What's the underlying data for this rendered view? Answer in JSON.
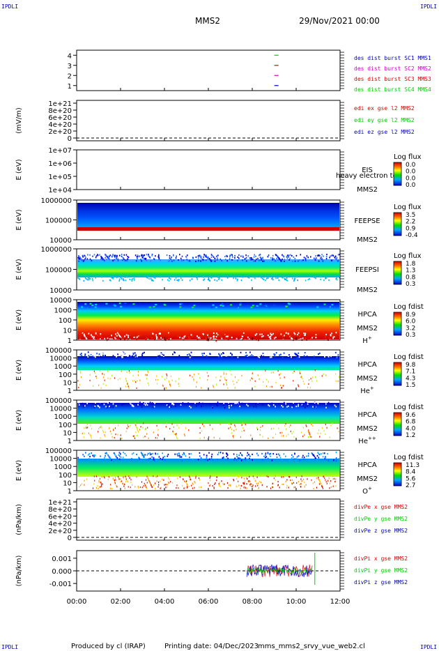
{
  "header": {
    "corner_label": "IPDLI",
    "spacecraft": "MMS2",
    "datetime": "29/Nov/2021 00:00"
  },
  "footer": {
    "produced_by": "Produced by cl (IRAP)",
    "printing_date": "Printing date: 04/Dec/2023",
    "script": "mms_mms2_srvy_vue_web2.cl"
  },
  "time_axis": {
    "ticks": [
      "00:00",
      "02:00",
      "04:00",
      "06:00",
      "08:00",
      "10:00",
      "12:00"
    ],
    "range_hours": [
      0,
      12
    ]
  },
  "colors": {
    "blue": "#0000cc",
    "magenta": "#cc00cc",
    "red": "#dd0000",
    "green": "#00cc00"
  },
  "chart_data": [
    {
      "type": "scatter",
      "id": "burst",
      "ylim": [
        0.5,
        4.5
      ],
      "yticks": [
        "1",
        "2",
        "3",
        "4"
      ],
      "ylabel": "",
      "legend": [
        "des dist burst SC1 MMS1",
        "des dist burst SC2 MMS2",
        "des dist burst SC3 MMS3",
        "des dist burst SC4 MMS4"
      ],
      "legend_colors": [
        "#0000cc",
        "#cc00cc",
        "#dd0000",
        "#00cc00"
      ],
      "series": [
        {
          "name": "des dist burst SC1 MMS1",
          "x": [
            9.1
          ],
          "y": [
            1
          ]
        },
        {
          "name": "des dist burst SC2 MMS2",
          "x": [
            9.1
          ],
          "y": [
            2
          ]
        },
        {
          "name": "des dist burst SC3 MMS3",
          "x": [
            9.1
          ],
          "y": [
            3
          ]
        },
        {
          "name": "des dist burst SC4 MMS4",
          "x": [
            9.1
          ],
          "y": [
            4
          ]
        }
      ]
    },
    {
      "type": "line",
      "id": "edi",
      "ylabel": "(mV/m)",
      "yticks": [
        "1e+21",
        "8e+20",
        "6e+20",
        "4e+20",
        "2e+20",
        "0"
      ],
      "legend": [
        "edi ex gse l2 MMS2",
        "edi ey gse l2 MMS2",
        "edi ez gse l2 MMS2"
      ],
      "legend_colors": [
        "#dd0000",
        "#00cc00",
        "#0000cc"
      ]
    },
    {
      "type": "heatmap",
      "id": "eis",
      "ylabel": "E (eV)",
      "yticks": [
        "1e+07",
        "1e+06",
        "1e+05",
        "1e+04"
      ],
      "instrument": "EIS",
      "species_overlay": "heavy electron to",
      "spacecraft": "MMS2",
      "colorbar_title": "Log flux",
      "colorbar_ticks": [
        "0.0",
        "0.0",
        "0.0",
        "0.0"
      ]
    },
    {
      "type": "heatmap",
      "id": "feepse",
      "ylabel": "E (eV)",
      "yticks": [
        "1000000",
        "100000",
        "10000"
      ],
      "instrument": "FEEPSE",
      "spacecraft": "MMS2",
      "colorbar_title": "Log flux",
      "colorbar_ticks": [
        "3.5",
        "2.2",
        "0.9",
        "-0.4"
      ]
    },
    {
      "type": "heatmap",
      "id": "feepsi",
      "ylabel": "E (eV)",
      "yticks": [
        "1000000",
        "100000",
        "10000"
      ],
      "instrument": "FEEPSI",
      "spacecraft": "MMS2",
      "colorbar_title": "Log flux",
      "colorbar_ticks": [
        "1.8",
        "1.3",
        "0.8",
        "0.3"
      ]
    },
    {
      "type": "heatmap",
      "id": "hpca-h",
      "ylabel": "E (eV)",
      "yticks": [
        "10000",
        "1000",
        "100",
        "10",
        "1"
      ],
      "instrument": "HPCA",
      "spacecraft": "MMS2",
      "species": "H",
      "species_sup": "+",
      "colorbar_title": "Log fdist",
      "colorbar_ticks": [
        "8.9",
        "6.0",
        "3.2",
        "0.3"
      ]
    },
    {
      "type": "heatmap",
      "id": "hpca-he",
      "ylabel": "E (eV)",
      "yticks": [
        "100000",
        "10000",
        "1000",
        "100",
        "10",
        "1"
      ],
      "instrument": "HPCA",
      "spacecraft": "MMS2",
      "species": "He",
      "species_sup": "+",
      "colorbar_title": "Log fdist",
      "colorbar_ticks": [
        "9.8",
        "7.1",
        "4.3",
        "1.5"
      ]
    },
    {
      "type": "heatmap",
      "id": "hpca-hepp",
      "ylabel": "E (eV)",
      "yticks": [
        "100000",
        "10000",
        "1000",
        "100",
        "10",
        "1"
      ],
      "instrument": "HPCA",
      "spacecraft": "MMS2",
      "species": "He",
      "species_sup": "++",
      "colorbar_title": "Log fdist",
      "colorbar_ticks": [
        "9.6",
        "6.8",
        "4.0",
        "1.2"
      ]
    },
    {
      "type": "heatmap",
      "id": "hpca-o",
      "ylabel": "E (eV)",
      "yticks": [
        "100000",
        "10000",
        "1000",
        "100",
        "10",
        "1"
      ],
      "instrument": "HPCA",
      "spacecraft": "MMS2",
      "species": "O",
      "species_sup": "+",
      "colorbar_title": "Log fdist",
      "colorbar_ticks": [
        "11.3",
        "8.4",
        "5.6",
        "2.7"
      ]
    },
    {
      "type": "line",
      "id": "divpe",
      "ylabel": "(nPa/km)",
      "yticks": [
        "1e+21",
        "8e+20",
        "6e+20",
        "4e+20",
        "2e+20",
        "0"
      ],
      "legend": [
        "divPe x gse MMS2",
        "divPe y gse MMS2",
        "divPe z gse MMS2"
      ],
      "legend_colors": [
        "#dd0000",
        "#00cc00",
        "#0000cc"
      ]
    },
    {
      "type": "line",
      "id": "divpi",
      "ylabel": "(nPa/km)",
      "ylim": [
        -0.0016,
        0.0016
      ],
      "yticks": [
        "0.001",
        "0.000",
        "-0.001"
      ],
      "data_span_hours": [
        7.75,
        10.75
      ],
      "legend": [
        "divPi x gse MMS2",
        "divPi y gse MMS2",
        "divPi z gse MMS2"
      ],
      "legend_colors": [
        "#dd0000",
        "#00cc00",
        "#0000cc"
      ]
    }
  ]
}
